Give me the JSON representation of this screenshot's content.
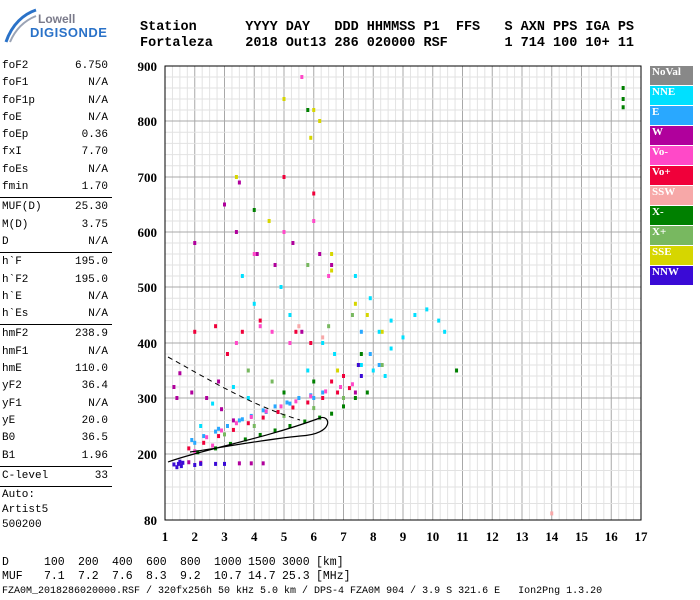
{
  "logo": {
    "line1": "Lowell",
    "line2": "DIGISONDE"
  },
  "header": {
    "col_labels": [
      "Station",
      "YYYY",
      "DAY",
      "DDD",
      "HHMMSS",
      "P1",
      "FFS",
      "S",
      "AXN",
      "PPS",
      "IGA",
      "PS"
    ],
    "col_values": [
      "Fortaleza",
      "2018",
      "Out13",
      "286",
      "020000",
      "RSF",
      "",
      "1",
      "714",
      "100",
      "10+",
      "11"
    ]
  },
  "params": {
    "groups": [
      [
        {
          "label": "foF2",
          "value": "6.750"
        },
        {
          "label": "foF1",
          "value": "N/A"
        },
        {
          "label": "foF1p",
          "value": "N/A"
        },
        {
          "label": "foE",
          "value": "N/A"
        },
        {
          "label": "foEp",
          "value": "0.36"
        },
        {
          "label": "fxI",
          "value": "7.70"
        },
        {
          "label": "foEs",
          "value": "N/A"
        },
        {
          "label": "fmin",
          "value": "1.70"
        }
      ],
      [
        {
          "label": "MUF(D)",
          "value": "25.30"
        },
        {
          "label": "M(D)",
          "value": "3.75"
        },
        {
          "label": "D",
          "value": "N/A"
        }
      ],
      [
        {
          "label": "h`F",
          "value": "195.0"
        },
        {
          "label": "h`F2",
          "value": "195.0"
        },
        {
          "label": "h`E",
          "value": "N/A"
        },
        {
          "label": "h`Es",
          "value": "N/A"
        }
      ],
      [
        {
          "label": "hmF2",
          "value": "238.9"
        },
        {
          "label": "hmF1",
          "value": "N/A"
        },
        {
          "label": "hmE",
          "value": "110.0"
        },
        {
          "label": "yF2",
          "value": "36.4"
        },
        {
          "label": "yF1",
          "value": "N/A"
        },
        {
          "label": "yE",
          "value": "20.0"
        },
        {
          "label": "B0",
          "value": "36.5"
        },
        {
          "label": "B1",
          "value": "1.96"
        }
      ],
      [
        {
          "label": "C-level",
          "value": "33"
        }
      ]
    ],
    "autoscale": [
      "Auto:",
      "Artist5",
      "500200"
    ]
  },
  "legend": [
    {
      "label": "NoVal",
      "color": "#888888"
    },
    {
      "label": "NNE",
      "color": "#00e0ff"
    },
    {
      "label": "E",
      "color": "#29a8ff"
    },
    {
      "label": "W",
      "color": "#b0009c"
    },
    {
      "label": "Vo-",
      "color": "#ff49c8"
    },
    {
      "label": "Vo+",
      "color": "#f0003a"
    },
    {
      "label": "SSW",
      "color": "#f7a8a8"
    },
    {
      "label": "X-",
      "color": "#008000"
    },
    {
      "label": "X+",
      "color": "#78b860"
    },
    {
      "label": "SSE",
      "color": "#d6d600"
    },
    {
      "label": "NNW",
      "color": "#3a0ad6"
    }
  ],
  "bottom_table": {
    "rows": [
      {
        "label": "D",
        "values": [
          "100",
          "200",
          "400",
          "600",
          "800",
          "1000",
          "1500",
          "3000"
        ],
        "unit": "[km]"
      },
      {
        "label": "MUF",
        "values": [
          "7.1",
          "7.2",
          "7.6",
          "8.3",
          "9.2",
          "10.7",
          "14.7",
          "25.3"
        ],
        "unit": "[MHz]"
      }
    ]
  },
  "footer": "FZA0M_2018286020000.RSF / 320fx256h 50 kHz 5.0 km / DPS-4 FZA0M 904 / 3.9 S 321.6 E   Ion2Png 1.3.20",
  "chart_data": {
    "type": "scatter",
    "xlim": [
      1,
      17
    ],
    "ylim": [
      80,
      900
    ],
    "x_ticks": [
      1,
      2,
      3,
      4,
      5,
      6,
      7,
      8,
      9,
      10,
      11,
      12,
      13,
      14,
      15,
      16,
      17
    ],
    "y_ticks": [
      80,
      200,
      300,
      400,
      500,
      600,
      700,
      800,
      900
    ],
    "grid": true,
    "legend_position": "right",
    "series": [
      {
        "name": "NoVal",
        "points": []
      },
      {
        "name": "NNE",
        "points": [
          [
            7.9,
            480
          ],
          [
            8.2,
            420
          ],
          [
            8.6,
            440
          ],
          [
            9.0,
            410
          ],
          [
            9.4,
            450
          ],
          [
            9.8,
            460
          ],
          [
            10.2,
            440
          ],
          [
            10.4,
            420
          ],
          [
            7.6,
            360
          ],
          [
            8.0,
            350
          ],
          [
            8.4,
            340
          ],
          [
            8.6,
            390
          ],
          [
            7.4,
            520
          ],
          [
            4.9,
            500
          ],
          [
            5.2,
            450
          ],
          [
            3.6,
            520
          ],
          [
            4.0,
            470
          ],
          [
            3.3,
            320
          ],
          [
            3.8,
            300
          ],
          [
            2.6,
            290
          ],
          [
            2.2,
            250
          ],
          [
            6.3,
            400
          ],
          [
            5.8,
            350
          ],
          [
            6.7,
            380
          ]
        ]
      },
      {
        "name": "E",
        "points": [
          [
            1.9,
            225
          ],
          [
            2.3,
            232
          ],
          [
            2.7,
            240
          ],
          [
            3.1,
            250
          ],
          [
            3.5,
            260
          ],
          [
            3.9,
            268
          ],
          [
            4.3,
            278
          ],
          [
            4.7,
            285
          ],
          [
            5.1,
            292
          ],
          [
            5.5,
            300
          ],
          [
            5.9,
            305
          ],
          [
            6.3,
            310
          ],
          [
            2.0,
            220
          ],
          [
            2.8,
            245
          ],
          [
            3.6,
            262
          ],
          [
            4.4,
            275
          ],
          [
            5.2,
            290
          ],
          [
            6.0,
            300
          ],
          [
            7.6,
            420
          ],
          [
            7.9,
            380
          ],
          [
            8.2,
            360
          ]
        ]
      },
      {
        "name": "W",
        "points": [
          [
            1.5,
            345
          ],
          [
            1.9,
            310
          ],
          [
            1.3,
            320
          ],
          [
            2.4,
            300
          ],
          [
            2.9,
            280
          ],
          [
            3.3,
            260
          ],
          [
            1.4,
            300
          ],
          [
            2.8,
            330
          ],
          [
            2.0,
            580
          ],
          [
            3.4,
            600
          ],
          [
            4.1,
            560
          ],
          [
            5.3,
            580
          ],
          [
            6.2,
            560
          ],
          [
            6.6,
            540
          ],
          [
            4.7,
            540
          ],
          [
            5.6,
            420
          ],
          [
            3.0,
            650
          ],
          [
            3.5,
            690
          ],
          [
            1.5,
            183
          ],
          [
            1.8,
            185
          ],
          [
            3.5,
            183
          ],
          [
            3.9,
            183
          ],
          [
            4.3,
            183
          ],
          [
            2.2,
            184
          ],
          [
            7.4,
            310
          ]
        ]
      },
      {
        "name": "Vo-",
        "points": [
          [
            2.4,
            230
          ],
          [
            2.9,
            242
          ],
          [
            3.4,
            255
          ],
          [
            3.9,
            266
          ],
          [
            4.4,
            276
          ],
          [
            4.9,
            285
          ],
          [
            5.4,
            294
          ],
          [
            5.9,
            303
          ],
          [
            6.4,
            312
          ],
          [
            6.9,
            320
          ],
          [
            7.3,
            325
          ],
          [
            2.0,
            205
          ],
          [
            2.6,
            215
          ],
          [
            4.6,
            420
          ],
          [
            5.2,
            400
          ],
          [
            5.6,
            880
          ],
          [
            4.2,
            430
          ],
          [
            3.4,
            400
          ],
          [
            5.0,
            600
          ],
          [
            6.0,
            620
          ],
          [
            6.5,
            520
          ],
          [
            4.0,
            560
          ]
        ]
      },
      {
        "name": "Vo+",
        "points": [
          [
            1.8,
            210
          ],
          [
            2.3,
            220
          ],
          [
            2.8,
            232
          ],
          [
            3.3,
            243
          ],
          [
            3.8,
            255
          ],
          [
            4.3,
            265
          ],
          [
            4.8,
            275
          ],
          [
            5.3,
            283
          ],
          [
            5.8,
            292
          ],
          [
            6.3,
            300
          ],
          [
            6.8,
            310
          ],
          [
            7.2,
            318
          ],
          [
            6.6,
            330
          ],
          [
            7.0,
            340
          ],
          [
            5.4,
            420
          ],
          [
            5.9,
            400
          ],
          [
            3.1,
            380
          ],
          [
            3.6,
            420
          ],
          [
            4.2,
            440
          ],
          [
            5.0,
            700
          ],
          [
            6.0,
            670
          ],
          [
            2.0,
            420
          ],
          [
            2.7,
            430
          ]
        ]
      },
      {
        "name": "SSW",
        "points": [
          [
            14.0,
            92
          ],
          [
            5.5,
            430
          ],
          [
            6.3,
            410
          ]
        ]
      },
      {
        "name": "X-",
        "points": [
          [
            16.4,
            860
          ],
          [
            16.4,
            840
          ],
          [
            16.4,
            825
          ],
          [
            2.1,
            203
          ],
          [
            2.7,
            210
          ],
          [
            3.2,
            218
          ],
          [
            3.7,
            226
          ],
          [
            4.2,
            234
          ],
          [
            4.7,
            242
          ],
          [
            5.2,
            250
          ],
          [
            5.7,
            258
          ],
          [
            6.2,
            265
          ],
          [
            6.6,
            272
          ],
          [
            7.0,
            285
          ],
          [
            7.4,
            300
          ],
          [
            7.8,
            310
          ],
          [
            5.8,
            820
          ],
          [
            4.0,
            640
          ],
          [
            6.0,
            330
          ],
          [
            5.0,
            310
          ],
          [
            7.6,
            380
          ],
          [
            10.8,
            350
          ]
        ]
      },
      {
        "name": "X+",
        "points": [
          [
            3.0,
            235
          ],
          [
            4.0,
            250
          ],
          [
            5.0,
            268
          ],
          [
            6.0,
            282
          ],
          [
            7.0,
            300
          ],
          [
            6.5,
            430
          ],
          [
            5.8,
            540
          ],
          [
            7.3,
            450
          ],
          [
            8.3,
            360
          ],
          [
            4.6,
            330
          ],
          [
            3.8,
            350
          ]
        ]
      },
      {
        "name": "SSE",
        "points": [
          [
            5.9,
            770
          ],
          [
            6.0,
            820
          ],
          [
            6.2,
            800
          ],
          [
            4.5,
            620
          ],
          [
            6.6,
            560
          ],
          [
            6.6,
            530
          ],
          [
            7.4,
            470
          ],
          [
            7.8,
            450
          ],
          [
            8.3,
            420
          ],
          [
            7.5,
            360
          ],
          [
            6.8,
            350
          ],
          [
            3.4,
            700
          ],
          [
            5.0,
            840
          ]
        ]
      },
      {
        "name": "NNW",
        "points": [
          [
            1.3,
            181
          ],
          [
            1.45,
            182
          ],
          [
            1.55,
            178
          ],
          [
            1.4,
            176
          ],
          [
            1.6,
            184
          ],
          [
            1.5,
            186
          ],
          [
            7.5,
            360
          ],
          [
            7.6,
            340
          ],
          [
            2.0,
            180
          ],
          [
            2.2,
            182
          ],
          [
            2.7,
            182
          ],
          [
            3.0,
            182
          ]
        ]
      }
    ]
  }
}
